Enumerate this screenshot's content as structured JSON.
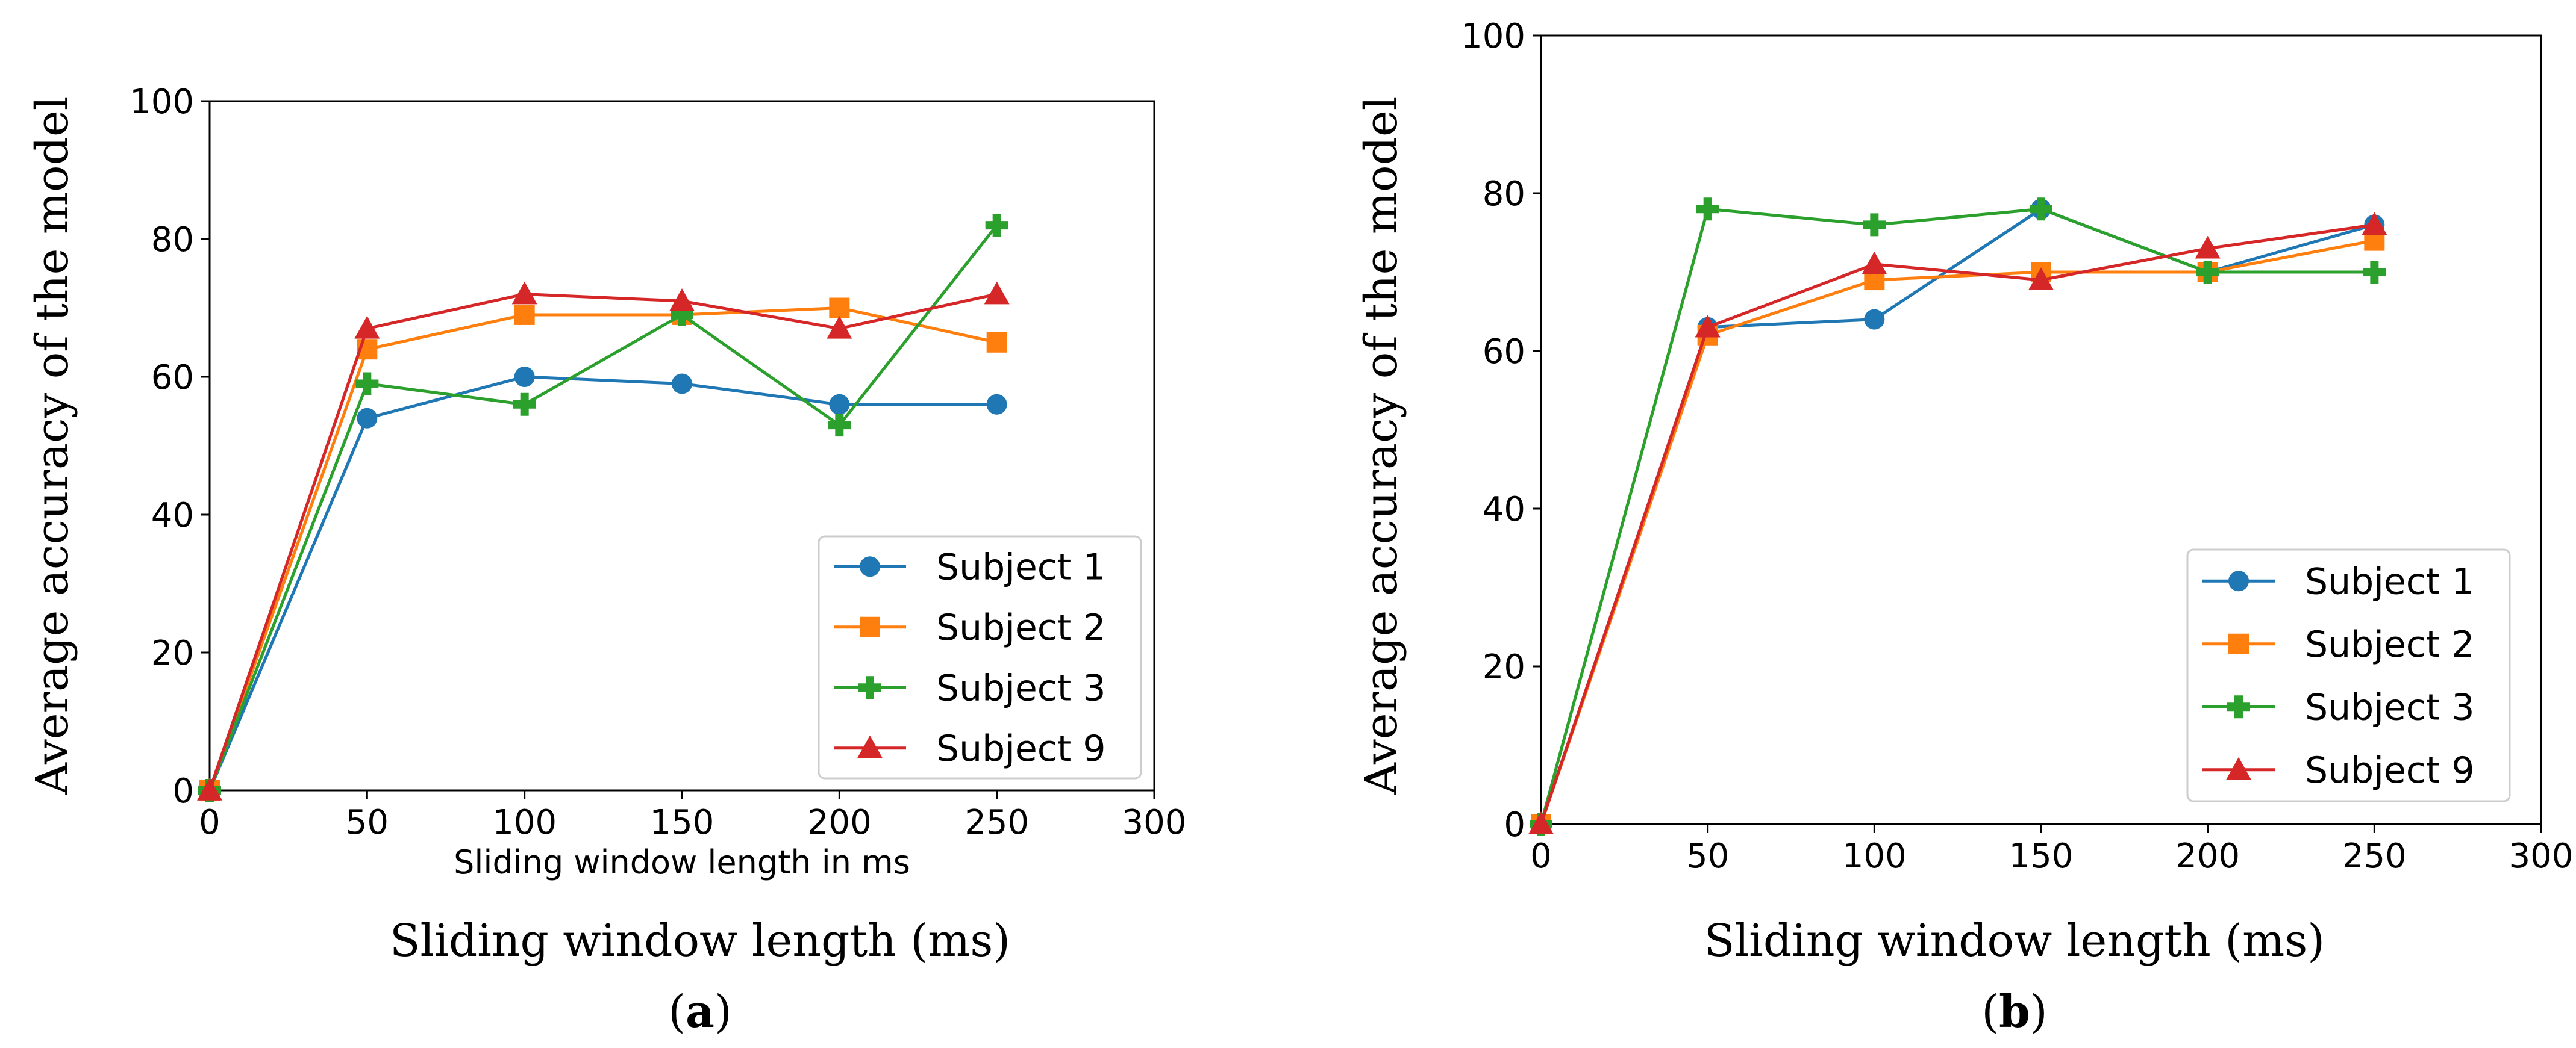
{
  "chart_data": [
    {
      "type": "line",
      "caption": "(a)",
      "xlabel_inner": "Sliding window length in ms",
      "xlabel": "Sliding window length (ms)",
      "ylabel": "Average accuracy of the model",
      "xlim": [
        0,
        300
      ],
      "ylim": [
        0,
        100
      ],
      "xticks": [
        "0",
        "50",
        "100",
        "150",
        "200",
        "250",
        "300"
      ],
      "yticks": [
        "0",
        "20",
        "40",
        "60",
        "80",
        "100"
      ],
      "grid": false,
      "legend_position": "bottom-right",
      "x": [
        0,
        50,
        100,
        150,
        200,
        250
      ],
      "series": [
        {
          "name": "Subject 1",
          "color": "#1f77b4",
          "marker": "circle",
          "values": [
            0,
            54,
            60,
            59,
            56,
            56
          ]
        },
        {
          "name": "Subject 2",
          "color": "#ff7f0e",
          "marker": "square",
          "values": [
            0,
            64,
            69,
            69,
            70,
            65
          ]
        },
        {
          "name": "Subject 3",
          "color": "#2ca02c",
          "marker": "plus",
          "values": [
            0,
            59,
            56,
            69,
            53,
            82
          ]
        },
        {
          "name": "Subject 9",
          "color": "#d62728",
          "marker": "triangle",
          "values": [
            0,
            67,
            72,
            71,
            67,
            72
          ]
        }
      ]
    },
    {
      "type": "line",
      "caption": "(b)",
      "xlabel_inner": "",
      "xlabel": "Sliding window length (ms)",
      "ylabel": "Average accuracy of the model",
      "xlim": [
        0,
        300
      ],
      "ylim": [
        0,
        100
      ],
      "xticks": [
        "0",
        "50",
        "100",
        "150",
        "200",
        "250",
        "300"
      ],
      "yticks": [
        "0",
        "20",
        "40",
        "60",
        "80",
        "100"
      ],
      "grid": false,
      "legend_position": "bottom-right",
      "x": [
        0,
        50,
        100,
        150,
        200,
        250
      ],
      "series": [
        {
          "name": "Subject 1",
          "color": "#1f77b4",
          "marker": "circle",
          "values": [
            0,
            63,
            64,
            78,
            70,
            76
          ]
        },
        {
          "name": "Subject 2",
          "color": "#ff7f0e",
          "marker": "square",
          "values": [
            0,
            62,
            69,
            70,
            70,
            74
          ]
        },
        {
          "name": "Subject 3",
          "color": "#2ca02c",
          "marker": "plus",
          "values": [
            0,
            78,
            76,
            78,
            70,
            70
          ]
        },
        {
          "name": "Subject 9",
          "color": "#d62728",
          "marker": "triangle",
          "values": [
            0,
            63,
            71,
            69,
            73,
            76
          ]
        }
      ]
    }
  ]
}
